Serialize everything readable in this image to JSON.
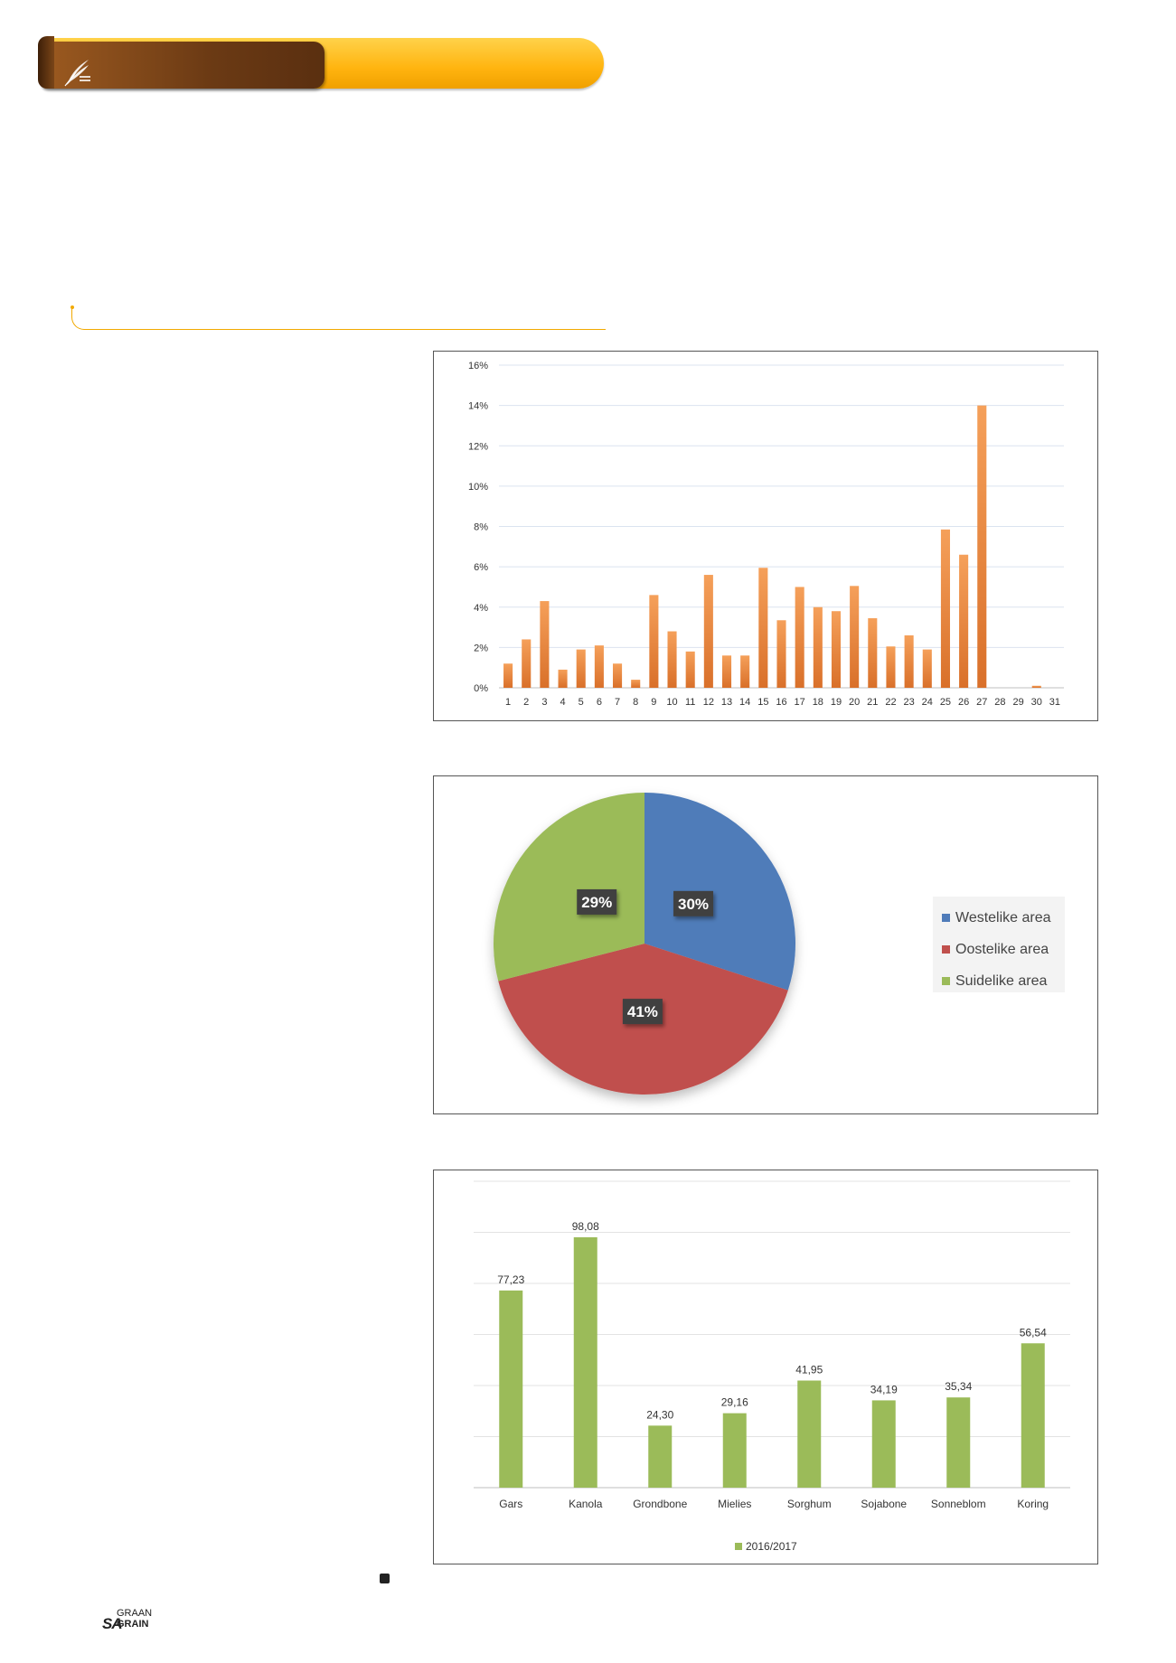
{
  "footer": {
    "logo_sa": "SA",
    "logo_graan": "GRAAN",
    "logo_grain": "GRAIN"
  },
  "colors": {
    "banner_yellow": "#ffb40f",
    "banner_brown": "#6b3a14",
    "rule": "#f2a900"
  },
  "chart_data": [
    {
      "type": "bar",
      "categories": [
        "1",
        "2",
        "3",
        "4",
        "5",
        "6",
        "7",
        "8",
        "9",
        "10",
        "11",
        "12",
        "13",
        "14",
        "15",
        "16",
        "17",
        "18",
        "19",
        "20",
        "21",
        "22",
        "23",
        "24",
        "25",
        "26",
        "27",
        "28",
        "29",
        "30",
        "31"
      ],
      "values": [
        1.2,
        2.4,
        4.3,
        0.9,
        1.9,
        2.1,
        1.2,
        0.4,
        4.6,
        2.8,
        1.8,
        5.6,
        1.6,
        1.6,
        5.95,
        3.35,
        5.0,
        4.0,
        3.8,
        5.05,
        3.45,
        2.05,
        2.6,
        1.9,
        7.85,
        6.6,
        14.0,
        0,
        0,
        0.1,
        0
      ],
      "yticks": [
        "0%",
        "2%",
        "4%",
        "6%",
        "8%",
        "10%",
        "12%",
        "14%",
        "16%"
      ],
      "ylim": [
        0,
        16
      ],
      "grid": true,
      "bar_color": "#e8843a"
    },
    {
      "type": "pie",
      "slices": [
        {
          "label": "Westelike area",
          "value": 30,
          "data_label": "30%",
          "color": "#4f7bb9"
        },
        {
          "label": "Oostelike area",
          "value": 41,
          "data_label": "41%",
          "color": "#c0504d"
        },
        {
          "label": "Suidelike area",
          "value": 29,
          "data_label": "29%",
          "color": "#9bbb59"
        }
      ],
      "legend": "right"
    },
    {
      "type": "bar",
      "categories": [
        "Gars",
        "Kanola",
        "Grondbone",
        "Mielies",
        "Sorghum",
        "Sojabone",
        "Sonneblom",
        "Koring"
      ],
      "series": [
        {
          "name": "2016/2017",
          "values": [
            77.23,
            98.08,
            24.3,
            29.16,
            41.95,
            34.19,
            35.34,
            56.54
          ],
          "data_labels": [
            "77,23",
            "98,08",
            "24,30",
            "29,16",
            "41,95",
            "34,19",
            "35,34",
            "56,54"
          ]
        }
      ],
      "ylim": [
        0,
        120
      ],
      "grid": true,
      "legend": "bottom",
      "bar_color": "#9bbb59"
    }
  ]
}
